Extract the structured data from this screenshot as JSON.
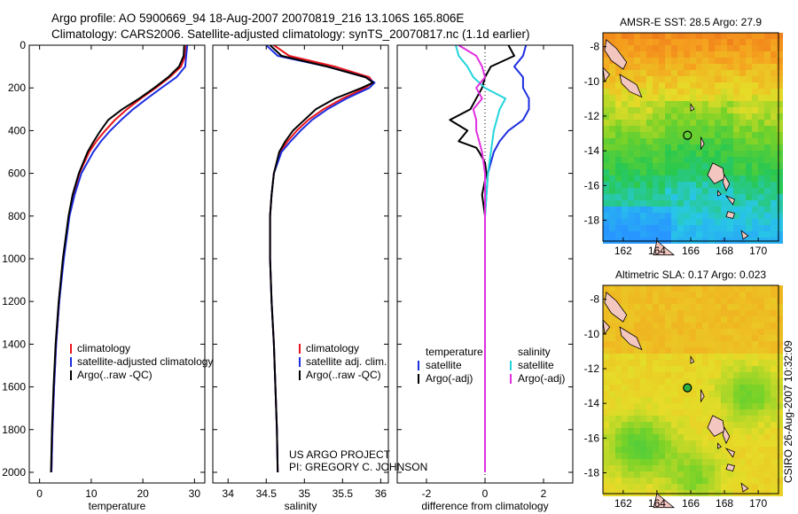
{
  "header": {
    "line1": "Argo profile: AO 5900669_94 18-Aug-2007 20070819_216 13.106S 165.806E",
    "line2": "Climatology: CARS2006. Satellite-adjusted climatology: synTS_20070817.nc (1.1d earlier)"
  },
  "credits": {
    "project": "US ARGO PROJECT",
    "pi": "PI: GREGORY C. JOHNSON",
    "side": "CSIRO 26-Aug-2007 10:32:09"
  },
  "colors": {
    "climatology": "#e8141c",
    "satellite": "#1c2ee0",
    "argo": "#000000",
    "cyan": "#22d4dc",
    "magenta": "#e030e0"
  },
  "chart_data": [
    {
      "id": "temperature",
      "type": "line",
      "xlabel": "temperature",
      "ylabel": "",
      "xlim": [
        -2,
        32
      ],
      "ylim": [
        2050,
        0
      ],
      "xticks": [
        0,
        10,
        20,
        30
      ],
      "yticks": [
        0,
        200,
        400,
        600,
        800,
        1000,
        1200,
        1400,
        1600,
        1800,
        2000
      ],
      "legend": [
        "climatology",
        "satellite-adjusted climatology",
        "Argo(..raw -QC)"
      ],
      "series": [
        {
          "name": "climatology",
          "color": "climatology",
          "depth": [
            0,
            50,
            100,
            150,
            200,
            250,
            300,
            350,
            400,
            450,
            500,
            600,
            700,
            800,
            1000,
            1200,
            1400,
            1600,
            1800,
            2000
          ],
          "values": [
            28.4,
            28.2,
            27.4,
            25.2,
            22.5,
            19.6,
            16.9,
            14.6,
            12.7,
            11.0,
            9.6,
            7.7,
            6.5,
            5.7,
            4.6,
            3.8,
            3.2,
            2.8,
            2.5,
            2.3
          ]
        },
        {
          "name": "satellite-adjusted climatology",
          "color": "satellite",
          "depth": [
            0,
            50,
            100,
            150,
            200,
            250,
            300,
            350,
            400,
            450,
            500,
            600,
            700,
            800,
            1000,
            1200,
            1400,
            1600,
            1800,
            2000
          ],
          "values": [
            28.6,
            28.4,
            28.2,
            26.5,
            23.6,
            20.8,
            18.1,
            15.8,
            13.7,
            11.9,
            10.4,
            8.1,
            6.8,
            5.8,
            4.7,
            3.8,
            3.2,
            2.8,
            2.5,
            2.3
          ]
        },
        {
          "name": "Argo(..raw -QC)",
          "color": "argo",
          "depth": [
            0,
            50,
            100,
            150,
            200,
            250,
            300,
            350,
            400,
            450,
            500,
            600,
            700,
            800,
            1000,
            1200,
            1400,
            1600,
            1800,
            2000
          ],
          "values": [
            28.0,
            27.9,
            27.0,
            24.9,
            22.2,
            19.3,
            16.0,
            13.3,
            11.8,
            10.5,
            9.3,
            7.6,
            6.4,
            5.6,
            4.5,
            3.7,
            3.1,
            2.7,
            2.4,
            2.2
          ]
        }
      ]
    },
    {
      "id": "salinity",
      "type": "line",
      "xlabel": "salinity",
      "xlim": [
        33.8,
        36.1
      ],
      "ylim": [
        2050,
        0
      ],
      "xticks": [
        34,
        34.5,
        35,
        35.5,
        36
      ],
      "legend": [
        "climatology",
        "satellite adj. clim.",
        "Argo(..raw -QC)"
      ],
      "series": [
        {
          "name": "climatology",
          "color": "climatology",
          "depth": [
            0,
            50,
            100,
            150,
            175,
            200,
            250,
            300,
            350,
            400,
            450,
            500,
            600,
            700,
            800,
            1000,
            1200,
            1400,
            1600,
            1800,
            2000
          ],
          "values": [
            34.6,
            34.8,
            35.4,
            35.85,
            35.9,
            35.8,
            35.5,
            35.25,
            35.05,
            34.9,
            34.78,
            34.68,
            34.6,
            34.57,
            34.55,
            34.55,
            34.57,
            34.6,
            34.62,
            34.64,
            34.65
          ]
        },
        {
          "name": "satellite adj. clim.",
          "color": "satellite",
          "depth": [
            0,
            50,
            100,
            150,
            175,
            200,
            250,
            300,
            350,
            400,
            450,
            500,
            600,
            700,
            800,
            1000,
            1200,
            1400,
            1600,
            1800,
            2000
          ],
          "values": [
            34.5,
            34.65,
            35.3,
            35.8,
            35.92,
            35.85,
            35.55,
            35.3,
            35.1,
            34.95,
            34.82,
            34.7,
            34.6,
            34.57,
            34.55,
            34.55,
            34.57,
            34.6,
            34.62,
            34.64,
            34.65
          ]
        },
        {
          "name": "Argo(..raw -QC)",
          "color": "argo",
          "depth": [
            0,
            50,
            100,
            150,
            175,
            200,
            250,
            300,
            350,
            400,
            450,
            500,
            600,
            700,
            800,
            1000,
            1200,
            1400,
            1600,
            1800,
            2000
          ],
          "values": [
            34.55,
            34.7,
            35.3,
            35.8,
            35.9,
            35.75,
            35.4,
            35.15,
            35.0,
            34.85,
            34.75,
            34.67,
            34.6,
            34.57,
            34.55,
            34.55,
            34.57,
            34.6,
            34.62,
            34.64,
            34.65
          ]
        }
      ]
    },
    {
      "id": "difference",
      "type": "line",
      "xlabel": "difference from climatology",
      "xlim": [
        -3,
        3
      ],
      "ylim": [
        2050,
        0
      ],
      "xticks": [
        -2,
        0,
        2
      ],
      "legend_groups": [
        {
          "title": "temperature",
          "items": [
            "satellite",
            "Argo(-adj)"
          ]
        },
        {
          "title": "salinity",
          "items": [
            "satellite",
            "Argo(-adj)"
          ]
        }
      ],
      "series": [
        {
          "name": "temperature satellite",
          "color": "satellite",
          "depth": [
            0,
            50,
            100,
            150,
            200,
            250,
            300,
            350,
            400,
            450,
            500,
            550,
            600,
            700,
            800,
            1000,
            1400,
            2000
          ],
          "values": [
            1.4,
            1.3,
            1.0,
            1.3,
            1.3,
            1.5,
            1.5,
            1.3,
            0.8,
            0.5,
            0.3,
            0.2,
            0.1,
            0.05,
            0.0,
            0.0,
            0.0,
            0.0
          ]
        },
        {
          "name": "temperature Argo(-adj)",
          "color": "argo",
          "depth": [
            0,
            50,
            100,
            150,
            200,
            250,
            300,
            350,
            400,
            450,
            480,
            500,
            550,
            600,
            700,
            800,
            1000,
            1400,
            2000
          ],
          "values": [
            0.8,
            1.0,
            0.2,
            0.0,
            -0.1,
            -0.3,
            -0.5,
            -1.2,
            -0.6,
            -0.9,
            -0.3,
            -0.2,
            0.0,
            0.05,
            -0.1,
            0.0,
            0.0,
            0.0,
            0.0
          ]
        },
        {
          "name": "salinity satellite",
          "color": "cyan",
          "depth": [
            0,
            50,
            100,
            150,
            200,
            250,
            300,
            350,
            400,
            450,
            500,
            600,
            700,
            800,
            1000,
            1400,
            2000
          ],
          "values": [
            -1.0,
            -0.9,
            -0.6,
            -0.4,
            0.0,
            0.7,
            0.5,
            0.4,
            0.3,
            0.25,
            0.2,
            0.1,
            0.05,
            0.0,
            0.0,
            0.0,
            0.0
          ]
        },
        {
          "name": "salinity Argo(-adj)",
          "color": "magenta",
          "depth": [
            0,
            50,
            100,
            150,
            200,
            250,
            300,
            350,
            400,
            450,
            500,
            600,
            700,
            800,
            1000,
            1400,
            2000
          ],
          "values": [
            -0.9,
            -0.3,
            -0.1,
            0.0,
            -0.3,
            -0.1,
            -0.4,
            -0.3,
            -0.3,
            -0.2,
            -0.1,
            0.0,
            0.0,
            0.0,
            0.0,
            0.0,
            0.0
          ]
        }
      ]
    },
    {
      "id": "sst-map",
      "type": "heatmap",
      "title": "AMSR-E SST: 28.5 Argo: 27.9",
      "xticks": [
        162,
        164,
        166,
        168,
        170
      ],
      "yticks": [
        -8,
        -10,
        -12,
        -14,
        -16,
        -18
      ],
      "xlim": [
        160.8,
        171.2
      ],
      "ylim": [
        -19.2,
        -7.2
      ],
      "argo_position": {
        "lon": 165.806,
        "lat": -13.106
      }
    },
    {
      "id": "sla-map",
      "type": "heatmap",
      "title": "Altimetric SLA: 0.17 Argo: 0.023",
      "xticks": [
        162,
        164,
        166,
        168,
        170
      ],
      "yticks": [
        -8,
        -10,
        -12,
        -14,
        -16,
        -18
      ],
      "xlim": [
        160.8,
        171.2
      ],
      "ylim": [
        -19.2,
        -7.2
      ],
      "argo_position": {
        "lon": 165.806,
        "lat": -13.106
      }
    }
  ]
}
